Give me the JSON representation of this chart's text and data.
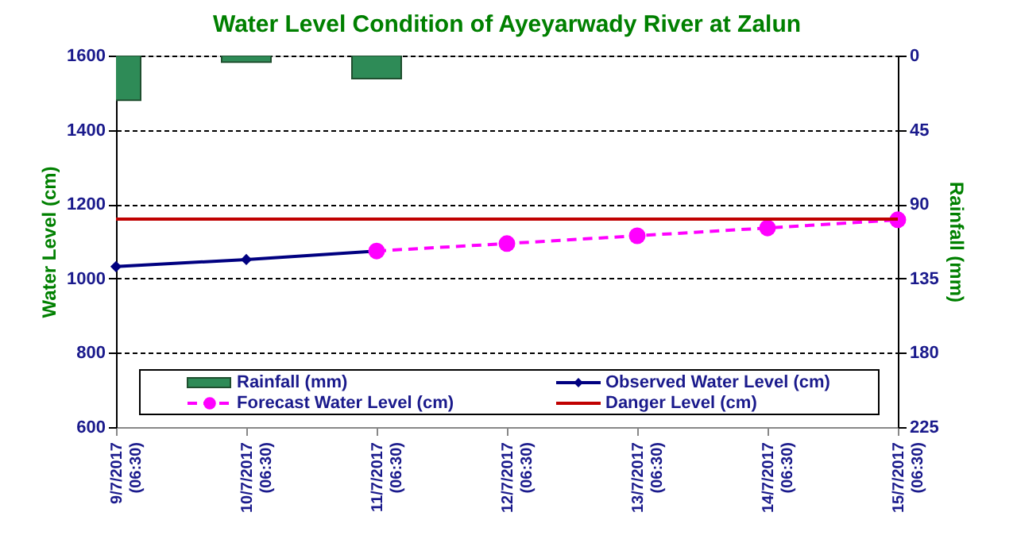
{
  "chart_data": {
    "type": "line",
    "title": "Water Level Condition of Ayeyarwady River at Zalun",
    "ylabel": "Water Level (cm)",
    "y2label": "Rainfall (mm)",
    "categories": [
      "9/7/2017 (06:30)",
      "10/7/2017 (06:30)",
      "11/7/2017 (06:30)",
      "12/7/2017 (06:30)",
      "13/7/2017 (06:30)",
      "14/7/2017 (06:30)",
      "15/7/2017 (06:30)"
    ],
    "series": [
      {
        "name": "Rainfall (mm)",
        "type": "bar",
        "axis": "y2",
        "color": "#2e8b57",
        "values": [
          27,
          4,
          14,
          null,
          null,
          null,
          null
        ]
      },
      {
        "name": "Observed Water Level (cm)",
        "color": "#000080",
        "marker": "diamond",
        "line_style": "solid",
        "values": [
          1032,
          1051,
          1074,
          null,
          null,
          null,
          null
        ]
      },
      {
        "name": "Forecast Water Level (cm)",
        "color": "#ff00ff",
        "marker": "circle",
        "line_style": "dashed",
        "values": [
          null,
          null,
          1074,
          1094,
          1115,
          1136,
          1158
        ]
      }
    ],
    "ref_lines": [
      {
        "axis": "y",
        "value": 1160,
        "label": "Danger Level (cm)",
        "color": "#c00000",
        "line_style": "solid"
      }
    ],
    "ylim": [
      600,
      1600
    ],
    "yticks": [
      600,
      800,
      1000,
      1200,
      1400,
      1600
    ],
    "y2lim": [
      225,
      0
    ],
    "y2ticks": [
      0,
      45,
      90,
      135,
      180,
      225
    ],
    "grid": "y",
    "legend": "bottom"
  }
}
